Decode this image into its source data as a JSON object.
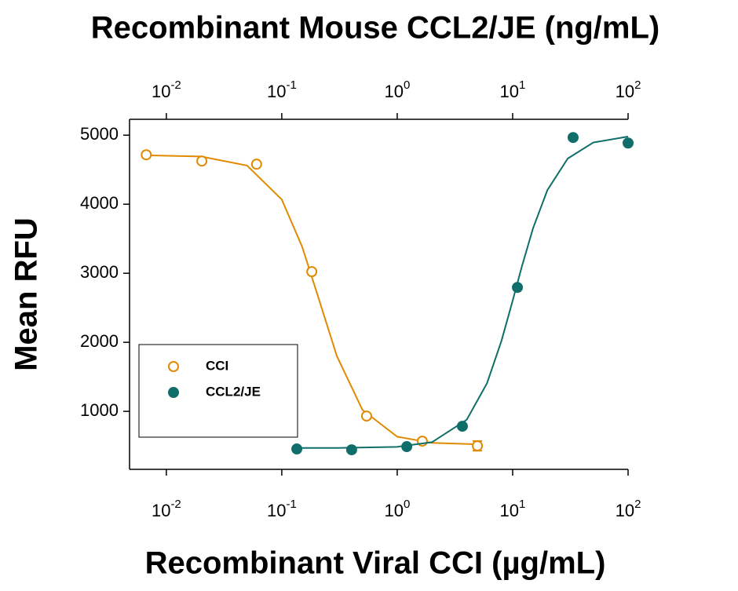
{
  "chart_data": {
    "type": "scatter",
    "title": "Recombinant Mouse CCL2/JE (ng/mL)",
    "x_label": "Recombinant Viral CCI (µg/mL)",
    "y_label": "Mean RFU",
    "xscale": "log",
    "xlim": [
      0.0048,
      100
    ],
    "ylim": [
      160,
      5230
    ],
    "xticks": [
      {
        "value": 0.01,
        "label": "10",
        "exponent": "-2"
      },
      {
        "value": 0.1,
        "label": "10",
        "exponent": "-1"
      },
      {
        "value": 1,
        "label": "10",
        "exponent": "0"
      },
      {
        "value": 10,
        "label": "10",
        "exponent": "1"
      },
      {
        "value": 100,
        "label": "10",
        "exponent": "2"
      }
    ],
    "x2ticks": [
      {
        "value": 0.01,
        "label": "10",
        "exponent": "-2"
      },
      {
        "value": 0.1,
        "label": "10",
        "exponent": "-1"
      },
      {
        "value": 1,
        "label": "10",
        "exponent": "0"
      },
      {
        "value": 10,
        "label": "10",
        "exponent": "1"
      },
      {
        "value": 100,
        "label": "10",
        "exponent": "2"
      }
    ],
    "yticks": [
      1000,
      2000,
      3000,
      4000,
      5000
    ],
    "series": [
      {
        "name": "CCI",
        "color": "#e08a00",
        "marker": "open",
        "x": [
          0.0067,
          0.0203,
          0.0605,
          0.182,
          0.543,
          1.65,
          4.95
        ],
        "values": [
          4716,
          4625,
          4580,
          3023,
          932,
          568,
          500
        ],
        "errors": [
          null,
          null,
          null,
          null,
          null,
          null,
          70
        ],
        "fit": {
          "x": [
            0.0067,
            0.02,
            0.05,
            0.1,
            0.15,
            0.2,
            0.3,
            0.5,
            1,
            2,
            5
          ],
          "values": [
            4708,
            4691,
            4560,
            4068,
            3386,
            2733,
            1801,
            1021,
            633,
            543,
            523
          ]
        }
      },
      {
        "name": "CCL2/JE",
        "color": "#0f6e6a",
        "marker": "filled",
        "x": [
          0.135,
          0.403,
          1.21,
          3.67,
          11.0,
          33.4,
          100
        ],
        "values": [
          455,
          443,
          489,
          784,
          2795,
          4966,
          4886
        ],
        "fit": {
          "x": [
            0.135,
            0.3,
            1,
            2,
            4,
            6,
            8,
            10,
            12,
            15,
            20,
            30,
            50,
            100
          ],
          "values": [
            470,
            470,
            486,
            553,
            878,
            1408,
            2021,
            2603,
            3094,
            3649,
            4204,
            4662,
            4894,
            4980
          ]
        }
      }
    ]
  }
}
